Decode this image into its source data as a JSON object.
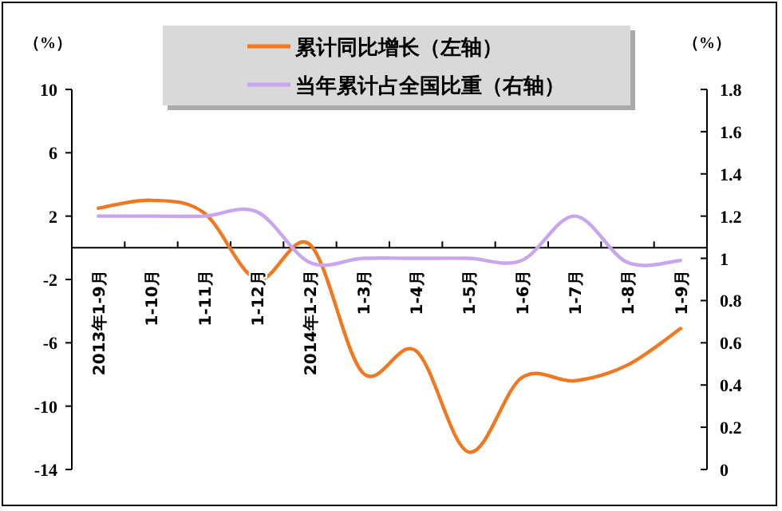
{
  "chart_data": {
    "type": "line",
    "categories": [
      "2013年1-9月",
      "1-10月",
      "1-11月",
      "1-12月",
      "2014年1-2月",
      "1-3月",
      "1-4月",
      "1-5月",
      "1-6月",
      "1-7月",
      "1-8月",
      "1-9月"
    ],
    "series": [
      {
        "name": "累计同比增长（左轴）",
        "color": "#f07820",
        "values": [
          2.5,
          3.0,
          2.2,
          -2.0,
          0.2,
          -7.9,
          -6.5,
          -12.9,
          -8.2,
          -8.4,
          -7.4,
          -5.1
        ]
      },
      {
        "name": "当年累计占全国比重（右轴）",
        "color": "#c8a6ee",
        "axis": "y2",
        "values": [
          1.2,
          1.2,
          1.2,
          1.22,
          0.98,
          1.0,
          1.0,
          1.0,
          0.99,
          1.2,
          0.98,
          0.99
        ]
      }
    ],
    "ylabel": "（%）",
    "y2label": "（%）",
    "ylim": [
      -14,
      10
    ],
    "yticks": [
      -14,
      -10,
      -6,
      -2,
      2,
      6,
      10
    ],
    "y2lim": [
      0,
      1.8
    ],
    "y2ticks": [
      0,
      0.2,
      0.4,
      0.6,
      0.8,
      1,
      1.2,
      1.4,
      1.6,
      1.8
    ],
    "legend": "top",
    "grid": false,
    "marker": "none",
    "line_style": "solid"
  }
}
